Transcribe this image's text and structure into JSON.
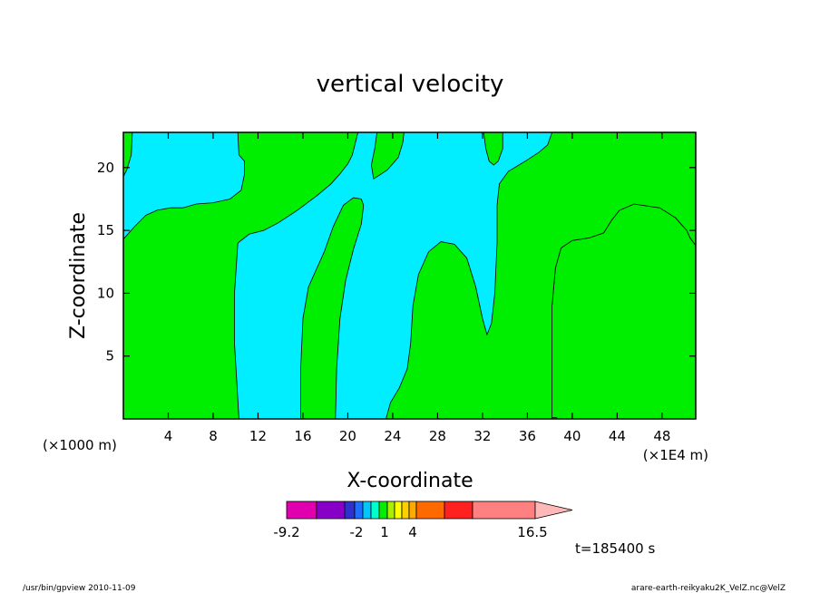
{
  "chart_data": {
    "type": "heatmap",
    "title": "vertical velocity",
    "xlabel": "X-coordinate",
    "ylabel": "Z-coordinate",
    "x_unit_left": "(×1000 m)",
    "x_unit_right": "(×1E4 m)",
    "xlim": [
      0,
      51
    ],
    "ylim": [
      0,
      22.8
    ],
    "xticks": [
      4,
      8,
      12,
      16,
      20,
      24,
      28,
      32,
      36,
      40,
      44,
      48
    ],
    "yticks": [
      5,
      10,
      15,
      20
    ],
    "background_color": "#00eeff",
    "regions": [
      {
        "color": "#00ee00",
        "points": [
          [
            0,
            0
          ],
          [
            10.3,
            0
          ],
          [
            10.1,
            3
          ],
          [
            9.9,
            6
          ],
          [
            9.9,
            10
          ],
          [
            10.2,
            14
          ],
          [
            11.2,
            14.7
          ],
          [
            12.5,
            15
          ],
          [
            13.8,
            15.6
          ],
          [
            15.5,
            16.6
          ],
          [
            17.3,
            17.8
          ],
          [
            18.5,
            18.7
          ],
          [
            19.3,
            19.5
          ],
          [
            20,
            20.3
          ],
          [
            20.4,
            21
          ],
          [
            20.9,
            22.8
          ],
          [
            10.2,
            22.8
          ],
          [
            10.3,
            21
          ],
          [
            10.8,
            20.5
          ],
          [
            10.8,
            19.5
          ],
          [
            10.5,
            18.2
          ],
          [
            9.5,
            17.5
          ],
          [
            8,
            17.2
          ],
          [
            6.5,
            17.1
          ],
          [
            5.3,
            16.8
          ],
          [
            4.2,
            16.8
          ],
          [
            3,
            16.6
          ],
          [
            2,
            16.2
          ],
          [
            1,
            15.3
          ],
          [
            0,
            14.3
          ]
        ]
      },
      {
        "color": "#00ee00",
        "points": [
          [
            0,
            22.8
          ],
          [
            0.8,
            22.8
          ],
          [
            0.7,
            21
          ],
          [
            0.3,
            19.8
          ],
          [
            0,
            19.3
          ]
        ]
      },
      {
        "color": "#00ee00",
        "points": [
          [
            15.8,
            0
          ],
          [
            18.9,
            0
          ],
          [
            19,
            4
          ],
          [
            19.3,
            8
          ],
          [
            19.8,
            11
          ],
          [
            20.5,
            13.5
          ],
          [
            21.2,
            15.5
          ],
          [
            21.4,
            17
          ],
          [
            21.2,
            17.5
          ],
          [
            20.5,
            17.6
          ],
          [
            19.6,
            17
          ],
          [
            18.7,
            15.3
          ],
          [
            17.9,
            13.3
          ],
          [
            17,
            11.5
          ],
          [
            16.5,
            10.5
          ],
          [
            16,
            8
          ],
          [
            15.8,
            4
          ]
        ]
      },
      {
        "color": "#00ee00",
        "points": [
          [
            23.4,
            0
          ],
          [
            34.2,
            0
          ],
          [
            34.4,
            3
          ],
          [
            34.8,
            4.8
          ],
          [
            35.5,
            5.5
          ],
          [
            36.3,
            5.1
          ],
          [
            36.8,
            3.5
          ],
          [
            36.8,
            0
          ],
          [
            51,
            0
          ],
          [
            51,
            13.8
          ],
          [
            50.5,
            14.4
          ],
          [
            50.2,
            15
          ],
          [
            49.2,
            16
          ],
          [
            47.8,
            16.8
          ],
          [
            45.5,
            17.1
          ],
          [
            44.2,
            16.6
          ],
          [
            43.5,
            15.8
          ],
          [
            42.8,
            14.8
          ],
          [
            41.5,
            14.4
          ],
          [
            40,
            14.2
          ],
          [
            39,
            13.6
          ],
          [
            38.5,
            12
          ],
          [
            38.2,
            9
          ],
          [
            38.2,
            0
          ],
          [
            38.7,
            0
          ],
          [
            38.6,
            0.1
          ],
          [
            38.5,
            0.1
          ],
          [
            38.2,
            0.1
          ]
        ]
      },
      {
        "color": "#00ee00",
        "points": [
          [
            23.4,
            0
          ],
          [
            23.8,
            1.3
          ],
          [
            24.6,
            2.5
          ],
          [
            25.3,
            4
          ],
          [
            25.6,
            6
          ],
          [
            25.8,
            9
          ],
          [
            26.3,
            11.5
          ],
          [
            27.2,
            13.3
          ],
          [
            28.3,
            14.1
          ],
          [
            29.5,
            13.9
          ],
          [
            30.6,
            12.8
          ],
          [
            31.4,
            10.5
          ],
          [
            32,
            8
          ],
          [
            32.4,
            6.7
          ],
          [
            32.8,
            7.6
          ],
          [
            33.1,
            10
          ],
          [
            33.3,
            14
          ],
          [
            33.3,
            17
          ],
          [
            33.5,
            18.7
          ],
          [
            34.3,
            19.7
          ],
          [
            35.8,
            20.5
          ],
          [
            37,
            21.2
          ],
          [
            37.8,
            21.8
          ],
          [
            38.2,
            22.8
          ],
          [
            51,
            22.8
          ],
          [
            51,
            13.8
          ],
          [
            50.5,
            14.4
          ],
          [
            50.2,
            15
          ],
          [
            49.2,
            16
          ],
          [
            47.8,
            16.8
          ],
          [
            45.5,
            17.1
          ],
          [
            44.2,
            16.6
          ],
          [
            43.5,
            15.8
          ],
          [
            42.8,
            14.8
          ],
          [
            41.5,
            14.4
          ],
          [
            40,
            14.2
          ],
          [
            39,
            13.6
          ],
          [
            38.5,
            12
          ],
          [
            38.2,
            9
          ],
          [
            38.2,
            0
          ]
        ]
      },
      {
        "color": "#00ee00",
        "points": [
          [
            22.3,
            19.1
          ],
          [
            23.5,
            19.8
          ],
          [
            24.5,
            20.8
          ],
          [
            24.9,
            22
          ],
          [
            25,
            22.8
          ],
          [
            22.6,
            22.8
          ],
          [
            22.4,
            21.5
          ],
          [
            22.1,
            20.2
          ]
        ]
      },
      {
        "color": "#00ee00",
        "points": [
          [
            32.1,
            22.8
          ],
          [
            33.8,
            22.8
          ],
          [
            33.8,
            21.5
          ],
          [
            33.4,
            20.5
          ],
          [
            33,
            20.2
          ],
          [
            32.6,
            20.5
          ],
          [
            32.3,
            21.5
          ]
        ]
      }
    ],
    "colorbar": {
      "colors": [
        "#e000b0",
        "#8800c8",
        "#3030d0",
        "#1e6eff",
        "#00c8ff",
        "#00ffcc",
        "#00ee00",
        "#aaee00",
        "#ffff00",
        "#ffd000",
        "#ffaa00",
        "#ff6a00",
        "#ff2020",
        "#ff8080",
        "#ffb8b8"
      ],
      "tick_labels": [
        "-9.2",
        "-2",
        "1",
        "4",
        "16.5"
      ]
    },
    "time_label": "t=185400 s"
  },
  "footer": {
    "left": "/usr/bin/gpview   2010-11-09",
    "right": "arare-earth-reikyaku2K_VelZ.nc@VelZ"
  }
}
